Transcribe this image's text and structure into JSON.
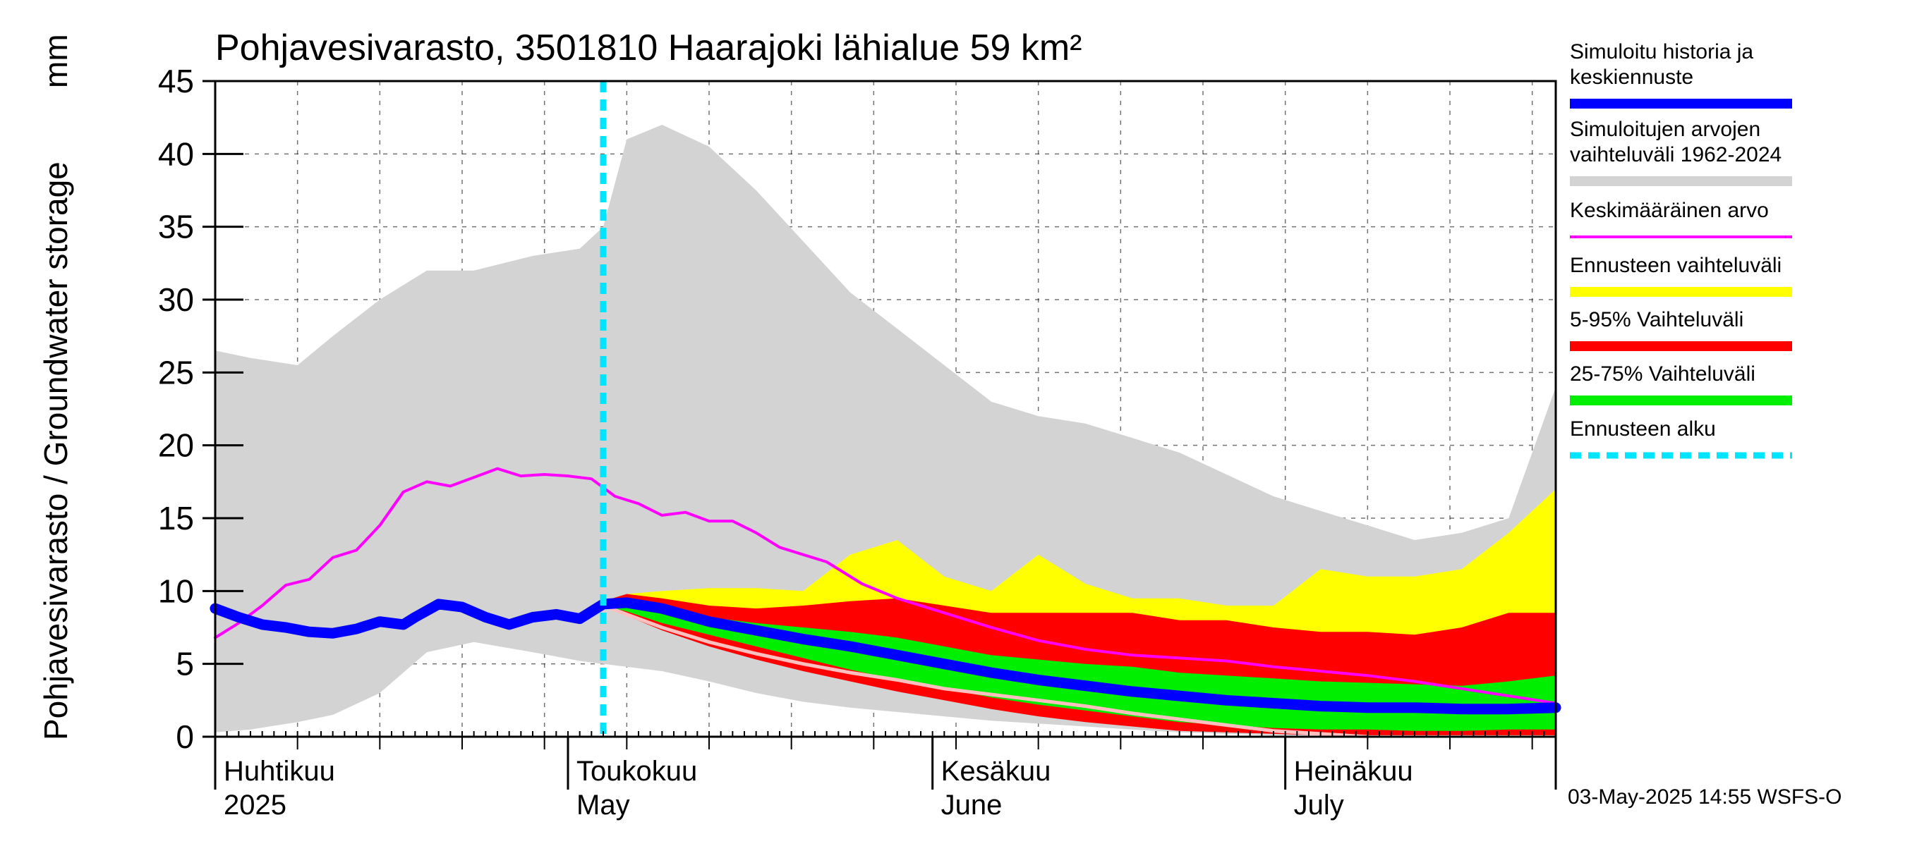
{
  "chart_data": {
    "type": "area",
    "title": "Pohjavesivarasto, 3501810 Haarajoki lähialue 59 km²",
    "ylabel": "Pohjavesivarasto / Groundwater storage",
    "yunit": "mm",
    "ylim": [
      0,
      45
    ],
    "yticks": [
      0,
      5,
      10,
      15,
      20,
      25,
      30,
      35,
      40,
      45
    ],
    "xrange_days": [
      0,
      114
    ],
    "forecast_start_day": 33,
    "month_ticks": [
      {
        "day": 0,
        "fi": "Huhtikuu",
        "en": "2025"
      },
      {
        "day": 30,
        "fi": "Toukokuu",
        "en": "May"
      },
      {
        "day": 61,
        "fi": "Kesäkuu",
        "en": "June"
      },
      {
        "day": 91,
        "fi": "Heinäkuu",
        "en": "July"
      }
    ],
    "series": {
      "history_range": {
        "name": "Simuloitujen arvojen vaihteluväli 1962-2024",
        "color": "#d3d3d3",
        "x": [
          0,
          3,
          7,
          10,
          14,
          18,
          22,
          27,
          31,
          33,
          35,
          38,
          42,
          46,
          50,
          54,
          58,
          62,
          66,
          70,
          74,
          78,
          82,
          86,
          90,
          94,
          98,
          102,
          106,
          110,
          114
        ],
        "lower": [
          0.3,
          0.5,
          1.0,
          1.5,
          3.0,
          5.8,
          6.5,
          5.8,
          5.2,
          5.0,
          4.8,
          4.5,
          3.8,
          3.0,
          2.4,
          2.0,
          1.7,
          1.4,
          1.1,
          0.9,
          0.7,
          0.5,
          0.3,
          0.2,
          0.1,
          0.1,
          0.1,
          0.1,
          0.1,
          0.1,
          0.1
        ],
        "upper": [
          26.5,
          26.0,
          25.5,
          27.5,
          30.0,
          32.0,
          32.0,
          33.0,
          33.5,
          35.0,
          41.0,
          42.0,
          40.5,
          37.5,
          34.0,
          30.5,
          28.0,
          25.5,
          23.0,
          22.0,
          21.5,
          20.5,
          19.5,
          18.0,
          16.5,
          15.5,
          14.5,
          13.5,
          14.0,
          15.0,
          24.0
        ]
      },
      "forecast_range": {
        "name": "Ennusteen vaihteluväli",
        "color": "#ffff00",
        "x": [
          33,
          35,
          38,
          42,
          46,
          50,
          54,
          58,
          62,
          66,
          70,
          74,
          78,
          82,
          86,
          90,
          94,
          98,
          102,
          106,
          110,
          114
        ],
        "lower": [
          9.0,
          8.5,
          7.6,
          6.6,
          5.8,
          5.0,
          4.3,
          3.7,
          3.0,
          2.3,
          1.7,
          1.2,
          0.9,
          0.7,
          0.6,
          0.5,
          0.4,
          0.3,
          0.2,
          0.1,
          0.1,
          0.1
        ],
        "upper": [
          9.3,
          9.8,
          10.0,
          10.2,
          10.2,
          10.0,
          12.5,
          13.5,
          11.0,
          10.0,
          12.5,
          10.5,
          9.5,
          9.5,
          9.0,
          9.0,
          11.5,
          11.0,
          11.0,
          11.5,
          14.0,
          17.0
        ]
      },
      "p5_95": {
        "name": "5-95% Vaihteluväli",
        "color": "#ff0000",
        "x": [
          33,
          35,
          38,
          42,
          46,
          50,
          54,
          58,
          62,
          66,
          70,
          74,
          78,
          82,
          86,
          90,
          94,
          98,
          102,
          106,
          110,
          114
        ],
        "lower": [
          9.0,
          8.3,
          7.3,
          6.2,
          5.3,
          4.5,
          3.8,
          3.1,
          2.5,
          1.9,
          1.4,
          1.0,
          0.7,
          0.4,
          0.3,
          0.2,
          0.1,
          0.1,
          0.1,
          0.1,
          0.1,
          0.1
        ],
        "upper": [
          9.3,
          9.8,
          9.5,
          9.0,
          8.8,
          9.0,
          9.3,
          9.5,
          9.0,
          8.5,
          8.5,
          8.5,
          8.5,
          8.0,
          8.0,
          7.5,
          7.2,
          7.2,
          7.0,
          7.5,
          8.5,
          8.5
        ]
      },
      "p25_75": {
        "name": "25-75% Vaihteluväli",
        "color": "#00ee00",
        "x": [
          33,
          35,
          38,
          42,
          46,
          50,
          54,
          58,
          62,
          66,
          70,
          74,
          78,
          82,
          86,
          90,
          94,
          98,
          102,
          106,
          110,
          114
        ],
        "lower": [
          9.0,
          8.6,
          7.8,
          7.0,
          6.2,
          5.4,
          4.6,
          3.9,
          3.3,
          2.7,
          2.2,
          1.8,
          1.4,
          1.0,
          0.8,
          0.6,
          0.5,
          0.5,
          0.4,
          0.4,
          0.5,
          0.5
        ],
        "upper": [
          9.3,
          9.5,
          9.0,
          8.2,
          7.8,
          7.5,
          7.2,
          6.8,
          6.2,
          5.6,
          5.3,
          5.0,
          4.8,
          4.4,
          4.2,
          4.0,
          3.8,
          3.7,
          3.6,
          3.5,
          3.8,
          4.2
        ]
      },
      "mean_value": {
        "name": "Keskimääräinen arvo",
        "color": "#ff00ff",
        "x": [
          0,
          2,
          4,
          6,
          8,
          10,
          12,
          14,
          16,
          18,
          20,
          22,
          24,
          26,
          28,
          30,
          32,
          34,
          36,
          38,
          40,
          42,
          44,
          46,
          48,
          50,
          52,
          55,
          58,
          62,
          66,
          70,
          74,
          78,
          82,
          86,
          90,
          94,
          98,
          102,
          106,
          110,
          114
        ],
        "y": [
          6.8,
          7.8,
          9.0,
          10.4,
          10.8,
          12.3,
          12.8,
          14.5,
          16.8,
          17.5,
          17.2,
          17.8,
          18.4,
          17.9,
          18.0,
          17.9,
          17.7,
          16.5,
          16.0,
          15.2,
          15.4,
          14.8,
          14.8,
          14.0,
          13.0,
          12.5,
          12.0,
          10.5,
          9.5,
          8.5,
          7.5,
          6.6,
          6.0,
          5.6,
          5.4,
          5.2,
          4.8,
          4.5,
          4.2,
          3.8,
          3.3,
          2.8,
          2.3
        ]
      },
      "median_forecast": {
        "name": "Simuloitu historia ja keskiennuste",
        "color": "#0000ff",
        "x": [
          0,
          2,
          4,
          6,
          8,
          10,
          12,
          14,
          16,
          17,
          19,
          21,
          23,
          25,
          27,
          29,
          31,
          33,
          35,
          38,
          42,
          46,
          50,
          54,
          58,
          62,
          66,
          70,
          74,
          78,
          82,
          86,
          90,
          94,
          98,
          102,
          106,
          110,
          114
        ],
        "y": [
          8.8,
          8.2,
          7.7,
          7.5,
          7.2,
          7.1,
          7.4,
          7.9,
          7.7,
          8.2,
          9.1,
          8.9,
          8.2,
          7.7,
          8.2,
          8.4,
          8.1,
          9.1,
          9.2,
          8.8,
          7.9,
          7.3,
          6.7,
          6.2,
          5.6,
          5.0,
          4.4,
          3.9,
          3.5,
          3.1,
          2.8,
          2.5,
          2.3,
          2.1,
          2.0,
          2.0,
          1.9,
          1.9,
          2.0
        ]
      },
      "low_scenario": {
        "name": "",
        "color": "#ffbfbf",
        "x": [
          33,
          38,
          42,
          46,
          50,
          54,
          58,
          62,
          66,
          70,
          74,
          78,
          82,
          86,
          90,
          94,
          98
        ],
        "y": [
          9.0,
          7.5,
          6.5,
          5.7,
          5.0,
          4.4,
          3.9,
          3.3,
          2.9,
          2.5,
          2.1,
          1.6,
          1.2,
          0.8,
          0.4,
          0.2,
          0.0
        ]
      }
    },
    "legend": [
      {
        "label": "Simuloitu historia ja keskiennuste",
        "color": "#0000ff",
        "style": "thick"
      },
      {
        "label": "Simuloitujen arvojen vaihteluväli 1962-2024",
        "color": "#d3d3d3",
        "style": "thick"
      },
      {
        "label": "Keskimääräinen arvo",
        "color": "#ff00ff",
        "style": "thin"
      },
      {
        "label": "Ennusteen vaihteluväli",
        "color": "#ffff00",
        "style": "thick"
      },
      {
        "label": "5-95% Vaihteluväli",
        "color": "#ff0000",
        "style": "thick"
      },
      {
        "label": "25-75% Vaihteluväli",
        "color": "#00ee00",
        "style": "thick"
      },
      {
        "label": "Ennusteen alku",
        "color": "#00e5ff",
        "style": "dashed"
      }
    ],
    "footer": "03-May-2025 14:55 WSFS-O"
  }
}
